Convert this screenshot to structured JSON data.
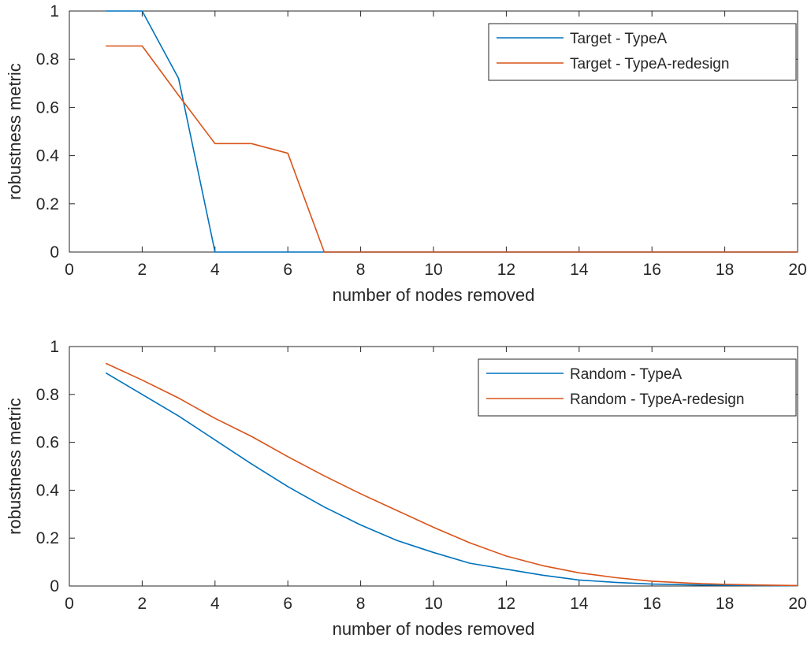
{
  "chart_data": [
    {
      "type": "line",
      "xlabel": "number of nodes removed",
      "ylabel": "robustness metric",
      "xlim": [
        0,
        20
      ],
      "ylim": [
        0,
        1
      ],
      "xticks": [
        "0",
        "2",
        "4",
        "6",
        "8",
        "10",
        "12",
        "14",
        "16",
        "18",
        "20"
      ],
      "yticks": [
        "0",
        "0.2",
        "0.4",
        "0.6",
        "0.8",
        "1"
      ],
      "grid": false,
      "legend_position": "top-right",
      "series": [
        {
          "name": "Target - TypeA",
          "color": "#0072BD",
          "x": [
            1,
            2,
            3,
            4,
            5,
            6,
            7,
            8,
            9,
            10,
            11,
            12,
            13,
            14,
            15,
            16,
            17,
            18,
            19,
            20
          ],
          "y": [
            1,
            1,
            0.72,
            0,
            0,
            0,
            0,
            0,
            0,
            0,
            0,
            0,
            0,
            0,
            0,
            0,
            0,
            0,
            0,
            0
          ]
        },
        {
          "name": "Target - TypeA-redesign",
          "color": "#D95319",
          "x": [
            1,
            2,
            3,
            4,
            5,
            6,
            7,
            8,
            9,
            10,
            11,
            12,
            13,
            14,
            15,
            16,
            17,
            18,
            19,
            20
          ],
          "y": [
            0.855,
            0.855,
            0.65,
            0.45,
            0.45,
            0.41,
            0,
            0,
            0,
            0,
            0,
            0,
            0,
            0,
            0,
            0,
            0,
            0,
            0,
            0
          ]
        }
      ]
    },
    {
      "type": "line",
      "xlabel": "number of nodes removed",
      "ylabel": "robustness metric",
      "xlim": [
        0,
        20
      ],
      "ylim": [
        0,
        1
      ],
      "xticks": [
        "0",
        "2",
        "4",
        "6",
        "8",
        "10",
        "12",
        "14",
        "16",
        "18",
        "20"
      ],
      "yticks": [
        "0",
        "0.2",
        "0.4",
        "0.6",
        "0.8",
        "1"
      ],
      "grid": false,
      "legend_position": "top-right",
      "series": [
        {
          "name": "Random - TypeA",
          "color": "#0072BD",
          "x": [
            1,
            2,
            3,
            4,
            5,
            6,
            7,
            8,
            9,
            10,
            11,
            12,
            13,
            14,
            15,
            16,
            17,
            18,
            19,
            20
          ],
          "y": [
            0.89,
            0.8,
            0.71,
            0.61,
            0.51,
            0.415,
            0.33,
            0.255,
            0.19,
            0.14,
            0.095,
            0.07,
            0.045,
            0.025,
            0.015,
            0.008,
            0.005,
            0.003,
            0.002,
            0.001
          ]
        },
        {
          "name": "Random - TypeA-redesign",
          "color": "#D95319",
          "x": [
            1,
            2,
            3,
            4,
            5,
            6,
            7,
            8,
            9,
            10,
            11,
            12,
            13,
            14,
            15,
            16,
            17,
            18,
            19,
            20
          ],
          "y": [
            0.93,
            0.86,
            0.785,
            0.7,
            0.625,
            0.54,
            0.46,
            0.385,
            0.315,
            0.245,
            0.18,
            0.125,
            0.085,
            0.055,
            0.035,
            0.02,
            0.012,
            0.007,
            0.004,
            0.002
          ]
        }
      ]
    }
  ]
}
